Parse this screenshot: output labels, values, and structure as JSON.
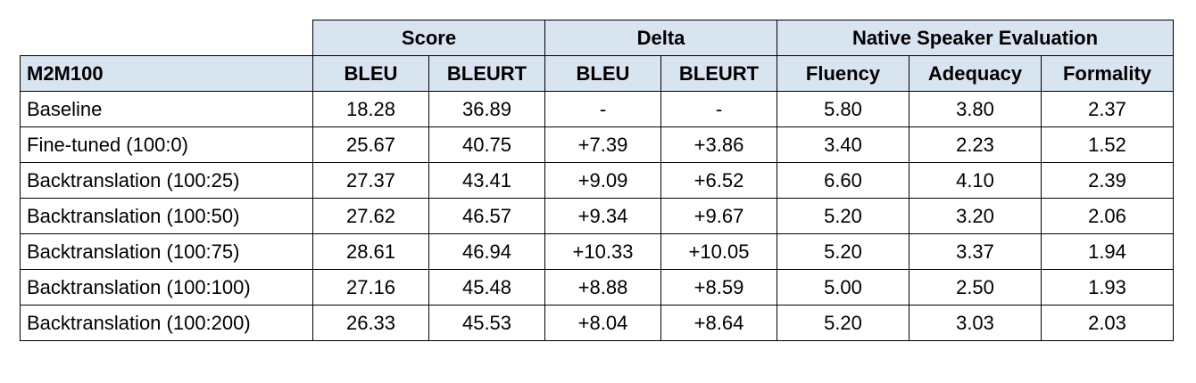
{
  "table": {
    "group_headers": [
      "Score",
      "Delta",
      "Native Speaker Evaluation"
    ],
    "model_label": "M2M100",
    "columns": [
      "BLEU",
      "BLEURT",
      "BLEU",
      "BLEURT",
      "Fluency",
      "Adequacy",
      "Formality"
    ],
    "rows": [
      {
        "label": "Baseline",
        "values": [
          "18.28",
          "36.89",
          "-",
          "-",
          "5.80",
          "3.80",
          "2.37"
        ]
      },
      {
        "label": "Fine-tuned (100:0)",
        "values": [
          "25.67",
          "40.75",
          "+7.39",
          "+3.86",
          "3.40",
          "2.23",
          "1.52"
        ]
      },
      {
        "label": "Backtranslation (100:25)",
        "values": [
          "27.37",
          "43.41",
          "+9.09",
          "+6.52",
          "6.60",
          "4.10",
          "2.39"
        ]
      },
      {
        "label": "Backtranslation (100:50)",
        "values": [
          "27.62",
          "46.57",
          "+9.34",
          "+9.67",
          "5.20",
          "3.20",
          "2.06"
        ]
      },
      {
        "label": "Backtranslation (100:75)",
        "values": [
          "28.61",
          "46.94",
          "+10.33",
          "+10.05",
          "5.20",
          "3.37",
          "1.94"
        ]
      },
      {
        "label": "Backtranslation (100:100)",
        "values": [
          "27.16",
          "45.48",
          "+8.88",
          "+8.59",
          "5.00",
          "2.50",
          "1.93"
        ]
      },
      {
        "label": "Backtranslation (100:200)",
        "values": [
          "26.33",
          "45.53",
          "+8.04",
          "+8.64",
          "5.20",
          "3.03",
          "2.03"
        ]
      }
    ]
  }
}
